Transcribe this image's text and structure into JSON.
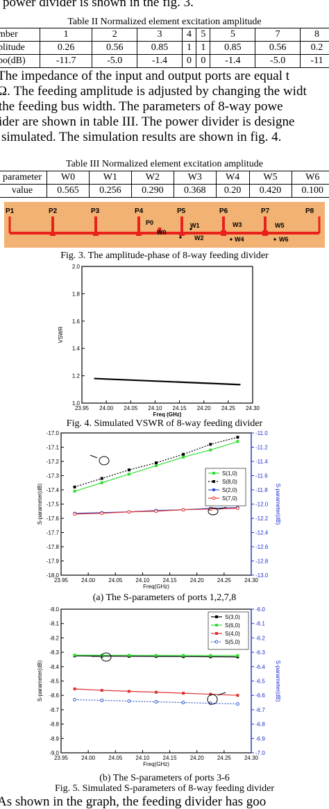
{
  "text": {
    "line0": "power divider is shown in the fig. 3.",
    "para1": [
      "The impedance of the input and output ports are equal t",
      "Ω. The feeding amplitude is adjusted by changing the widt",
      "the feeding bus width. The parameters of 8-way powe",
      "ider are shown in table III. The power divider is designe",
      "simulated. The simulation results are shown in fig. 4."
    ],
    "para_end": "As shown in the graph, the feeding divider has goo"
  },
  "table2": {
    "caption": "Table II Normalized element excitation amplitude",
    "rows": [
      [
        "mber",
        "1",
        "2",
        "3",
        "4",
        "5",
        "5",
        "7",
        "8"
      ],
      [
        "plitude",
        "0.26",
        "0.56",
        "0.85",
        "1",
        "1",
        "0.85",
        "0.56",
        "0.2"
      ],
      [
        "po(dB)",
        "-11.7",
        "-5.0",
        "-1.4",
        "0",
        "0",
        "-1.4",
        "-5.0",
        "-11"
      ]
    ]
  },
  "table3": {
    "caption": "Table III Normalized element excitation amplitude",
    "rows": [
      [
        "parameter",
        "W0",
        "W1",
        "W2",
        "W3",
        "W4",
        "W5",
        "W6"
      ],
      [
        "value",
        "0.565",
        "0.256",
        "0.290",
        "0.368",
        "0.20",
        "0.420",
        "0.100"
      ]
    ]
  },
  "fig3": {
    "caption": "Fig. 3. The amplitude-phase of 8-way feeding divider",
    "labels": [
      "P1",
      "P2",
      "P3",
      "P4",
      "P5",
      "P6",
      "P7",
      "P8",
      "P0",
      "W0",
      "W1",
      "W2",
      "W3",
      "W4",
      "W5",
      "W6"
    ],
    "colors": {
      "background": "#f2b273",
      "line": "#e8211b",
      "label": "#000000"
    }
  },
  "chart_data": [
    {
      "type": "line",
      "title": "",
      "caption": "Fig. 4. Simulated VSWR of 8-way feeding divider",
      "xlabel": "Freq (GHz)",
      "ylabel": "VSWR",
      "xlim": [
        23.95,
        24.3
      ],
      "ylim": [
        1.0,
        2.0
      ],
      "xticks": [
        "23.95",
        "24.00",
        "24.05",
        "24.10",
        "24.15",
        "24.20",
        "24.25",
        "24.30"
      ],
      "yticks": [
        "1.0",
        "1.2",
        "1.4",
        "1.6",
        "1.8",
        "2.0"
      ],
      "series": [
        {
          "x": [
            23.975,
            24.275
          ],
          "values": [
            1.18,
            1.135
          ],
          "color": "#000000"
        }
      ]
    },
    {
      "type": "line",
      "caption": "(a) The S-parameters of ports 1,2,7,8",
      "xlabel": "Freq(GHz)",
      "ylabel": "S-parameter(dB)",
      "y2label": "S-parameter(dB)",
      "xlim": [
        23.95,
        24.3
      ],
      "ylim": [
        -18.0,
        -17.0
      ],
      "y2lim": [
        -13.0,
        -11.0
      ],
      "xticks": [
        "23.95",
        "24.00",
        "24.05",
        "24.10",
        "24.15",
        "24.20",
        "24.25",
        "24.30"
      ],
      "yticks": [
        "-17.0",
        "-17.1",
        "-17.2",
        "-17.3",
        "-17.4",
        "-17.5",
        "-17.6",
        "-17.7",
        "-17.8",
        "-17.9",
        "-18.0"
      ],
      "y2ticks": [
        "-11.0",
        "-11.2",
        "-11.4",
        "-11.6",
        "-11.8",
        "-12.0",
        "-12.2",
        "-12.4",
        "-12.6",
        "-12.8",
        "-13.0"
      ],
      "legend_position": "right",
      "series": [
        {
          "name": "S(1,0)",
          "axis": "left",
          "color": "#33dd33",
          "marker": "square",
          "x": [
            23.975,
            24.025,
            24.075,
            24.125,
            24.175,
            24.225,
            24.275
          ],
          "values": [
            -17.41,
            -17.35,
            -17.29,
            -17.23,
            -17.17,
            -17.12,
            -17.06
          ]
        },
        {
          "name": "S(8,0)",
          "axis": "left",
          "color": "#000000",
          "marker": "square",
          "dashed": true,
          "x": [
            23.975,
            24.025,
            24.075,
            24.125,
            24.175,
            24.225,
            24.275
          ],
          "values": [
            -17.38,
            -17.32,
            -17.26,
            -17.21,
            -17.15,
            -17.08,
            -17.03
          ]
        },
        {
          "name": "S(2,0)",
          "axis": "right",
          "color": "#3355cc",
          "marker": "square",
          "x": [
            23.975,
            24.025,
            24.075,
            24.125,
            24.175,
            24.225,
            24.275
          ],
          "values": [
            -12.13,
            -12.12,
            -12.11,
            -12.09,
            -12.08,
            -12.06,
            -12.05
          ]
        },
        {
          "name": "S(7,0)",
          "axis": "right",
          "color": "#e03030",
          "marker": "circle",
          "x": [
            23.975,
            24.025,
            24.075,
            24.125,
            24.175,
            24.225,
            24.275
          ],
          "values": [
            -12.14,
            -12.13,
            -12.11,
            -12.1,
            -12.08,
            -12.07,
            -12.06
          ]
        }
      ]
    },
    {
      "type": "line",
      "caption": "(b) The S-parameters of ports 3-6",
      "xlabel": "Freq(GHz)",
      "ylabel": "S-parameter(dB)",
      "y2label": "S-parameter(dB)",
      "xlim": [
        23.95,
        24.3
      ],
      "ylim": [
        -9.0,
        -8.0
      ],
      "y2lim": [
        -7.0,
        -6.0
      ],
      "xticks": [
        "23.95",
        "24.00",
        "24.05",
        "24.10",
        "24.15",
        "24.20",
        "24.25",
        "24.30"
      ],
      "yticks": [
        "-8.0",
        "-8.1",
        "-8.2",
        "-8.3",
        "-8.4",
        "-8.5",
        "-8.6",
        "-8.7",
        "-8.8",
        "-8.9",
        "-9.0"
      ],
      "y2ticks": [
        "-6.0",
        "-6.1",
        "-6.2",
        "-6.3",
        "-6.4",
        "-6.5",
        "-6.6",
        "-6.7",
        "-6.8",
        "-6.9",
        "-7.0"
      ],
      "legend_position": "top-right",
      "series": [
        {
          "name": "S(3,0)",
          "axis": "left",
          "color": "#000000",
          "marker": "square",
          "x": [
            23.975,
            24.025,
            24.075,
            24.125,
            24.175,
            24.225,
            24.275
          ],
          "values": [
            -8.325,
            -8.327,
            -8.328,
            -8.329,
            -8.33,
            -8.331,
            -8.332
          ]
        },
        {
          "name": "S(6,0)",
          "axis": "left",
          "color": "#33dd33",
          "marker": "square",
          "x": [
            23.975,
            24.025,
            24.075,
            24.125,
            24.175,
            24.225,
            24.275
          ],
          "values": [
            -8.32,
            -8.321,
            -8.321,
            -8.322,
            -8.322,
            -8.323,
            -8.323
          ]
        },
        {
          "name": "S(4,0)",
          "axis": "right",
          "color": "#e03030",
          "marker": "square",
          "x": [
            23.975,
            24.025,
            24.075,
            24.125,
            24.175,
            24.225,
            24.275
          ],
          "values": [
            -6.555,
            -6.565,
            -6.572,
            -6.578,
            -6.585,
            -6.592,
            -6.6
          ]
        },
        {
          "name": "S(5,0)",
          "axis": "right",
          "color": "#3355cc",
          "marker": "circle",
          "dashed": true,
          "x": [
            23.975,
            24.025,
            24.075,
            24.125,
            24.175,
            24.225,
            24.275
          ],
          "values": [
            -6.63,
            -6.635,
            -6.64,
            -6.645,
            -6.65,
            -6.655,
            -6.66
          ]
        }
      ]
    }
  ],
  "fig5_caption": "Fig. 5. Simulated S-parameters of 8-way feeding divider"
}
